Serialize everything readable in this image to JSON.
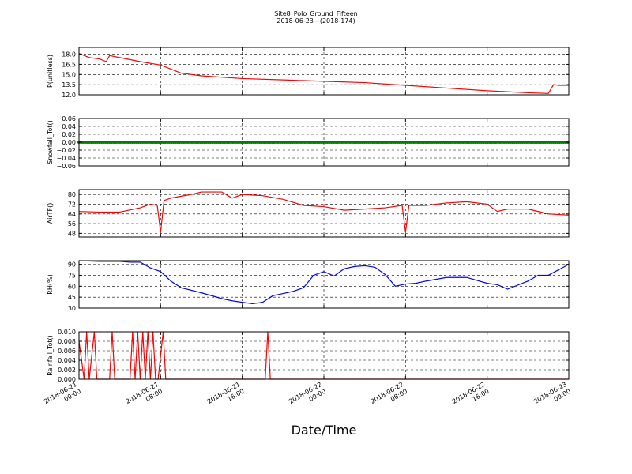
{
  "figure": {
    "title": "Site8_Polo_Ground_Fifteen",
    "subtitle": "2018-06-23 - (2018-174)",
    "xlabel": "Date/Time",
    "x_range": [
      "2018-06-21 00:00",
      "2018-06-23 00:00"
    ],
    "x_ticks": [
      {
        "line1": "2018-06-21",
        "line2": "00:00",
        "t": "2018-06-21 00:00"
      },
      {
        "line1": "2018-06-21",
        "line2": "08:00",
        "t": "2018-06-21 08:00"
      },
      {
        "line1": "2018-06-21",
        "line2": "16:00",
        "t": "2018-06-21 16:00"
      },
      {
        "line1": "2018-06-22",
        "line2": "00:00",
        "t": "2018-06-22 00:00"
      },
      {
        "line1": "2018-06-22",
        "line2": "08:00",
        "t": "2018-06-22 08:00"
      },
      {
        "line1": "2018-06-22",
        "line2": "16:00",
        "t": "2018-06-22 16:00"
      },
      {
        "line1": "2018-06-23",
        "line2": "00:00",
        "t": "2018-06-23 00:00"
      }
    ],
    "grid": true
  },
  "chart_data": [
    {
      "type": "line",
      "ylabel": "P(unitless)",
      "color": "#ff0000",
      "ylim": [
        12.0,
        19.0
      ],
      "yticks": [
        "12.0",
        "13.5",
        "15.0",
        "16.5",
        "18.0"
      ],
      "ytick_values": [
        12.0,
        13.5,
        15.0,
        16.5,
        18.0
      ],
      "series": [
        {
          "x": [
            "2018-06-21 00:00",
            "2018-06-21 01:00",
            "2018-06-21 02:00",
            "2018-06-21 02:40",
            "2018-06-21 03:00",
            "2018-06-21 04:00",
            "2018-06-21 06:00",
            "2018-06-21 08:00",
            "2018-06-21 10:00",
            "2018-06-21 12:00",
            "2018-06-21 16:00",
            "2018-06-21 20:00",
            "2018-06-22 00:00",
            "2018-06-22 04:00",
            "2018-06-22 08:00",
            "2018-06-22 12:00",
            "2018-06-22 16:00",
            "2018-06-22 20:00",
            "2018-06-22 22:00",
            "2018-06-22 22:30",
            "2018-06-22 23:00",
            "2018-06-23 00:00"
          ],
          "y": [
            18.1,
            17.5,
            17.3,
            16.9,
            17.8,
            17.5,
            16.9,
            16.4,
            15.2,
            14.8,
            14.4,
            14.2,
            14.0,
            13.8,
            13.4,
            13.0,
            12.6,
            12.3,
            12.2,
            13.5,
            13.4,
            13.4
          ]
        }
      ]
    },
    {
      "type": "scatter",
      "ylabel": "Snowfall_Tot()",
      "color": "#008000",
      "ylim": [
        -0.06,
        0.06
      ],
      "yticks": [
        "−0.06",
        "−0.04",
        "−0.02",
        "0.00",
        "0.02",
        "0.04",
        "0.06"
      ],
      "ytick_values": [
        -0.06,
        -0.04,
        -0.02,
        0.0,
        0.02,
        0.04,
        0.06
      ],
      "series": [
        {
          "x_start": "2018-06-21 00:00",
          "x_end": "2018-06-23 00:00",
          "constant": 0.0
        }
      ]
    },
    {
      "type": "line",
      "ylabel": "AirTF()",
      "color": "#ff0000",
      "ylim": [
        45,
        84
      ],
      "yticks": [
        "48",
        "56",
        "64",
        "72",
        "80"
      ],
      "ytick_values": [
        48,
        56,
        64,
        72,
        80
      ],
      "series": [
        {
          "x": [
            "2018-06-21 00:00",
            "2018-06-21 02:00",
            "2018-06-21 04:00",
            "2018-06-21 06:00",
            "2018-06-21 07:00",
            "2018-06-21 07:40",
            "2018-06-21 08:00",
            "2018-06-21 08:20",
            "2018-06-21 09:00",
            "2018-06-21 11:00",
            "2018-06-21 12:00",
            "2018-06-21 14:00",
            "2018-06-21 15:00",
            "2018-06-21 16:00",
            "2018-06-21 18:00",
            "2018-06-21 20:00",
            "2018-06-21 22:00",
            "2018-06-22 00:00",
            "2018-06-22 02:00",
            "2018-06-22 04:00",
            "2018-06-22 06:00",
            "2018-06-22 07:40",
            "2018-06-22 08:00",
            "2018-06-22 08:20",
            "2018-06-22 10:00",
            "2018-06-22 12:00",
            "2018-06-22 14:00",
            "2018-06-22 16:00",
            "2018-06-22 17:00",
            "2018-06-22 18:00",
            "2018-06-22 20:00",
            "2018-06-22 22:00",
            "2018-06-23 00:00"
          ],
          "y": [
            66,
            65.5,
            65.5,
            69,
            72,
            71,
            49,
            75,
            77,
            80,
            82,
            82,
            77,
            80,
            79,
            76,
            71,
            70,
            67,
            68,
            69,
            71,
            49,
            71,
            71,
            73,
            74,
            72,
            66,
            68,
            68,
            64,
            63
          ]
        }
      ]
    },
    {
      "type": "line",
      "ylabel": "RH(%)",
      "color": "#0000ff",
      "ylim": [
        30,
        95
      ],
      "yticks": [
        "30",
        "45",
        "60",
        "75",
        "90"
      ],
      "ytick_values": [
        30,
        45,
        60,
        75,
        90
      ],
      "series": [
        {
          "x": [
            "2018-06-21 00:00",
            "2018-06-21 02:00",
            "2018-06-21 04:00",
            "2018-06-21 05:00",
            "2018-06-21 06:00",
            "2018-06-21 07:00",
            "2018-06-21 08:00",
            "2018-06-21 09:00",
            "2018-06-21 10:00",
            "2018-06-21 12:00",
            "2018-06-21 14:00",
            "2018-06-21 15:00",
            "2018-06-21 16:00",
            "2018-06-21 17:00",
            "2018-06-21 18:00",
            "2018-06-21 19:00",
            "2018-06-21 20:00",
            "2018-06-21 21:00",
            "2018-06-21 22:00",
            "2018-06-21 23:00",
            "2018-06-22 00:00",
            "2018-06-22 01:00",
            "2018-06-22 02:00",
            "2018-06-22 03:00",
            "2018-06-22 04:00",
            "2018-06-22 05:00",
            "2018-06-22 06:00",
            "2018-06-22 07:00",
            "2018-06-22 08:00",
            "2018-06-22 09:00",
            "2018-06-22 10:00",
            "2018-06-22 12:00",
            "2018-06-22 14:00",
            "2018-06-22 15:00",
            "2018-06-22 16:00",
            "2018-06-22 17:00",
            "2018-06-22 18:00",
            "2018-06-22 20:00",
            "2018-06-22 21:00",
            "2018-06-22 22:00",
            "2018-06-23 00:00"
          ],
          "y": [
            95,
            94,
            94,
            93,
            93,
            85,
            80,
            67,
            58,
            51,
            43,
            40,
            38,
            36,
            38,
            47,
            50,
            53,
            58,
            75,
            80,
            74,
            84,
            87,
            88,
            86,
            76,
            60,
            63,
            64,
            67,
            72,
            72,
            68,
            64,
            62,
            56,
            67,
            75,
            75,
            90
          ]
        }
      ]
    },
    {
      "type": "line",
      "ylabel": "Rainfall_Tot()",
      "color": "#ff0000",
      "ylim": [
        0.0,
        0.01
      ],
      "yticks": [
        "0.000",
        "0.002",
        "0.004",
        "0.006",
        "0.008",
        "0.010"
      ],
      "ytick_values": [
        0.0,
        0.002,
        0.004,
        0.006,
        0.008,
        0.01
      ],
      "series": [
        {
          "x": [
            "2018-06-21 00:00",
            "2018-06-21 00:30",
            "2018-06-21 00:45",
            "2018-06-21 01:00",
            "2018-06-21 01:30",
            "2018-06-21 01:45",
            "2018-06-21 03:00",
            "2018-06-21 03:15",
            "2018-06-21 03:30",
            "2018-06-21 05:00",
            "2018-06-21 05:15",
            "2018-06-21 05:30",
            "2018-06-21 05:45",
            "2018-06-21 06:00",
            "2018-06-21 06:15",
            "2018-06-21 06:30",
            "2018-06-21 06:45",
            "2018-06-21 07:00",
            "2018-06-21 07:15",
            "2018-06-21 07:30",
            "2018-06-21 07:45",
            "2018-06-21 08:15",
            "2018-06-21 08:30",
            "2018-06-21 08:45",
            "2018-06-21 18:15",
            "2018-06-21 18:30",
            "2018-06-21 18:45",
            "2018-06-23 00:00"
          ],
          "y": [
            0.008,
            0.0,
            0.01,
            0.0,
            0.01,
            0.0,
            0.0,
            0.01,
            0.0,
            0.0,
            0.01,
            0.0,
            0.01,
            0.0,
            0.01,
            0.0,
            0.01,
            0.0,
            0.01,
            0.0,
            0.0,
            0.01,
            0.0,
            0.0,
            0.0,
            0.01,
            0.0,
            0.0
          ]
        }
      ]
    }
  ]
}
